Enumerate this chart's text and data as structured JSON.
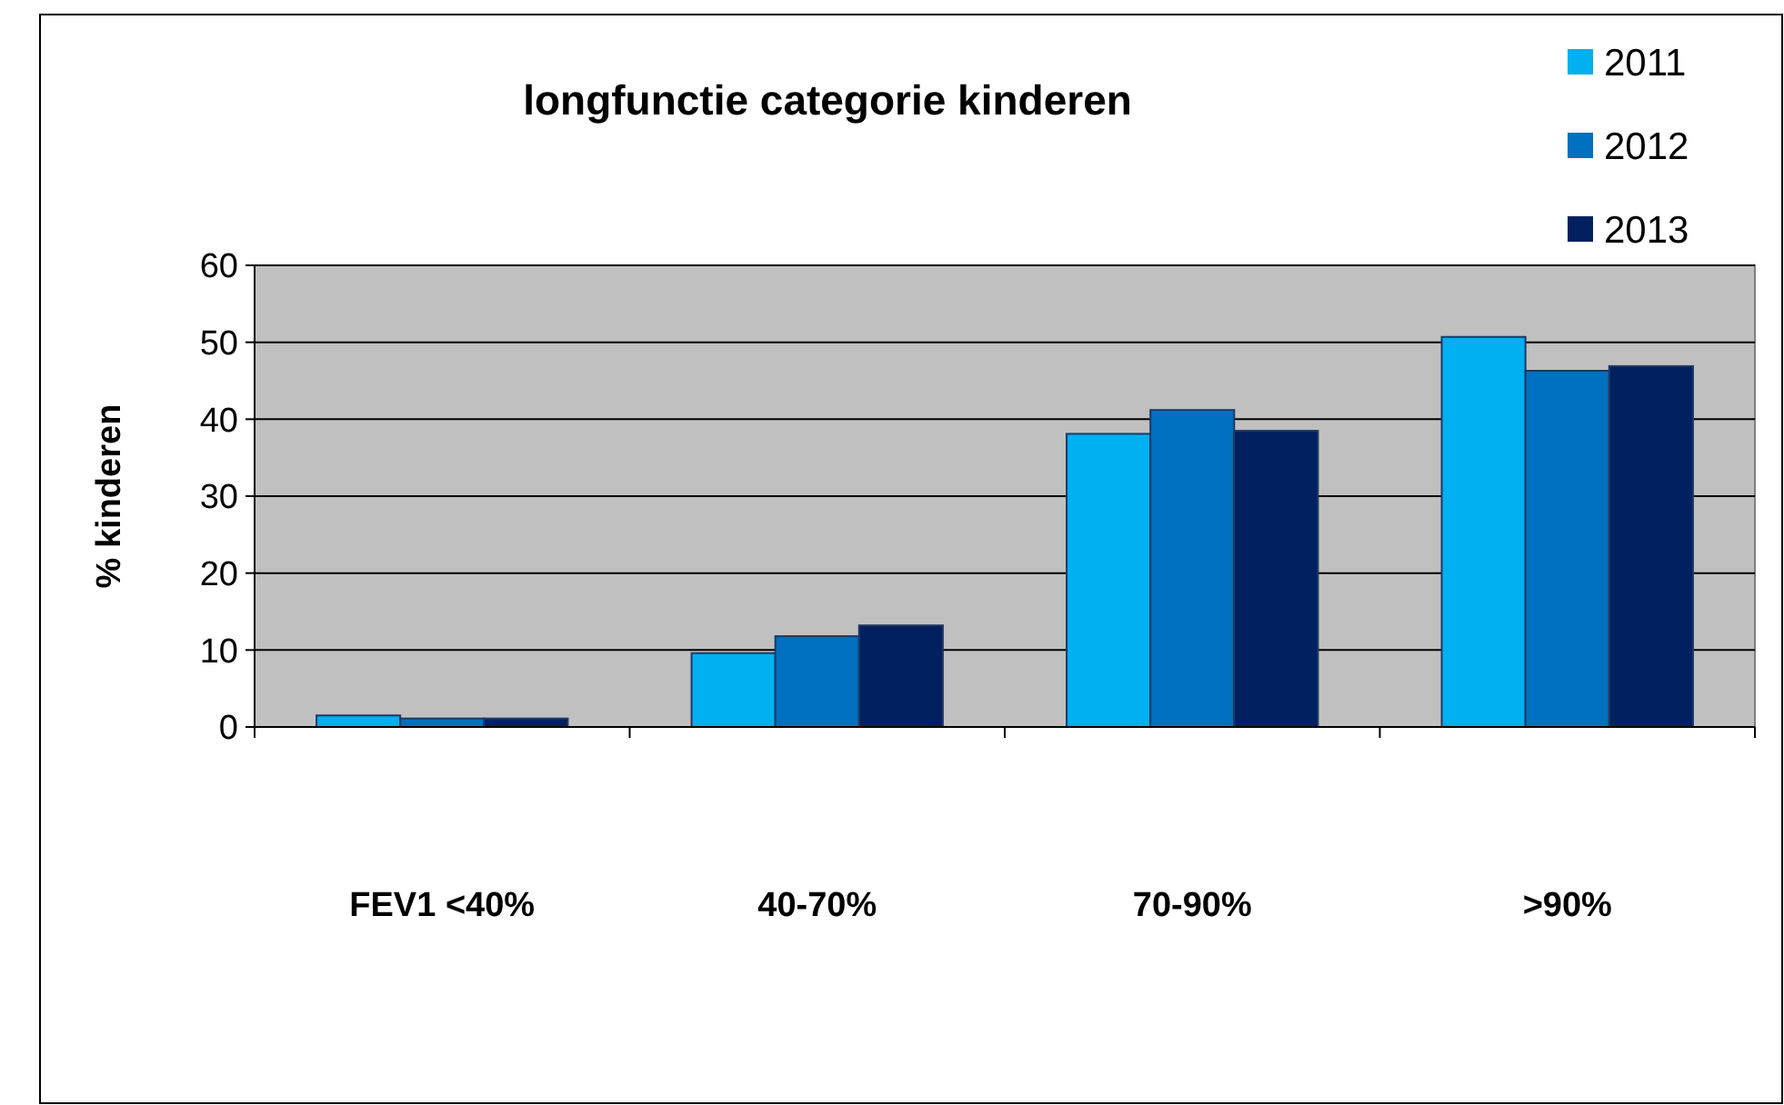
{
  "chart_data": {
    "type": "bar",
    "title": "longfunctie categorie kinderen",
    "ylabel": "% kinderen",
    "categories": [
      "FEV1 <40%",
      "40-70%",
      "70-90%",
      ">90%"
    ],
    "series": [
      {
        "name": "2011",
        "color": "#00b0f0",
        "values": [
          1.5,
          9.6,
          38.1,
          50.7
        ]
      },
      {
        "name": "2012",
        "color": "#0070c0",
        "values": [
          1.1,
          11.8,
          41.2,
          46.3
        ]
      },
      {
        "name": "2013",
        "color": "#002060",
        "values": [
          1.1,
          13.2,
          38.5,
          46.9
        ]
      }
    ],
    "ylim": [
      0,
      60
    ],
    "yticks": [
      0,
      10,
      20,
      30,
      40,
      50,
      60
    ],
    "grid": "y",
    "legend": "top right"
  }
}
